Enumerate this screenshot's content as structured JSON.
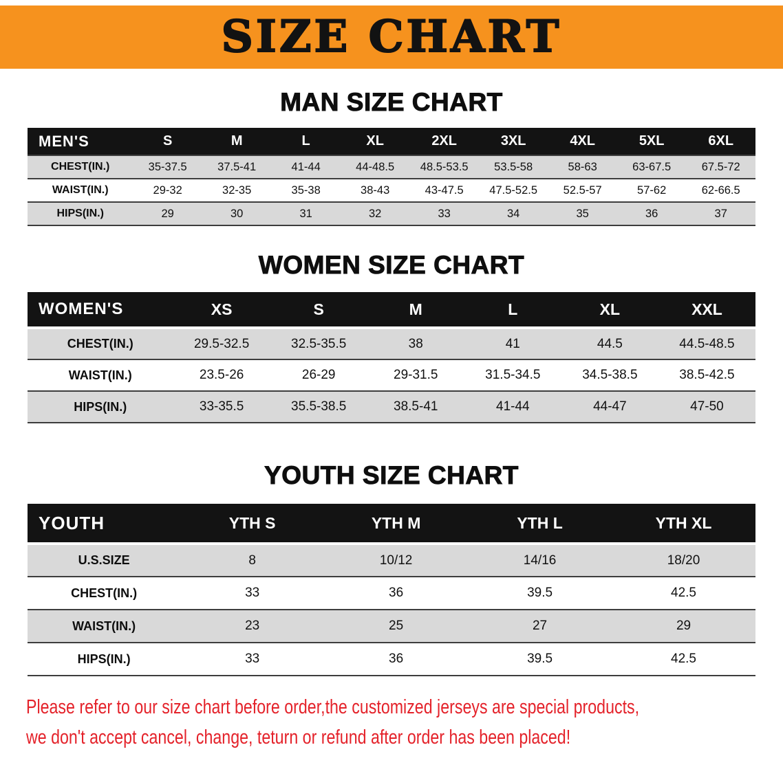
{
  "banner": {
    "title": "SIZE CHART",
    "background_color": "#F6921E",
    "text_color": "#121212"
  },
  "chart_data": [
    {
      "type": "table",
      "title": "MAN SIZE CHART",
      "corner_label": "MEN'S",
      "columns": [
        "S",
        "M",
        "L",
        "XL",
        "2XL",
        "3XL",
        "4XL",
        "5XL",
        "6XL"
      ],
      "rows": [
        {
          "label": "CHEST(IN.)",
          "values": [
            "35-37.5",
            "37.5-41",
            "41-44",
            "44-48.5",
            "48.5-53.5",
            "53.5-58",
            "58-63",
            "63-67.5",
            "67.5-72"
          ]
        },
        {
          "label": "WAIST(IN.)",
          "values": [
            "29-32",
            "32-35",
            "35-38",
            "38-43",
            "43-47.5",
            "47.5-52.5",
            "52.5-57",
            "57-62",
            "62-66.5"
          ]
        },
        {
          "label": "HIPS(IN.)",
          "values": [
            "29",
            "30",
            "31",
            "32",
            "33",
            "34",
            "35",
            "36",
            "37"
          ]
        }
      ]
    },
    {
      "type": "table",
      "title": "WOMEN SIZE CHART",
      "corner_label": "WOMEN'S",
      "columns": [
        "XS",
        "S",
        "M",
        "L",
        "XL",
        "XXL"
      ],
      "rows": [
        {
          "label": "CHEST(IN.)",
          "values": [
            "29.5-32.5",
            "32.5-35.5",
            "38",
            "41",
            "44.5",
            "44.5-48.5"
          ]
        },
        {
          "label": "WAIST(IN.)",
          "values": [
            "23.5-26",
            "26-29",
            "29-31.5",
            "31.5-34.5",
            "34.5-38.5",
            "38.5-42.5"
          ]
        },
        {
          "label": "HIPS(IN.)",
          "values": [
            "33-35.5",
            "35.5-38.5",
            "38.5-41",
            "41-44",
            "44-47",
            "47-50"
          ]
        }
      ]
    },
    {
      "type": "table",
      "title": "YOUTH SIZE CHART",
      "corner_label": "YOUTH",
      "columns": [
        "YTH S",
        "YTH M",
        "YTH L",
        "YTH XL"
      ],
      "rows": [
        {
          "label": "U.S.SIZE",
          "values": [
            "8",
            "10/12",
            "14/16",
            "18/20"
          ]
        },
        {
          "label": "CHEST(IN.)",
          "values": [
            "33",
            "36",
            "39.5",
            "42.5"
          ]
        },
        {
          "label": "WAIST(IN.)",
          "values": [
            "23",
            "25",
            "27",
            "29"
          ]
        },
        {
          "label": "HIPS(IN.)",
          "values": [
            "33",
            "36",
            "39.5",
            "42.5"
          ]
        }
      ]
    }
  ],
  "disclaimer": {
    "color": "#E4222A",
    "lines": [
      "Please refer to our size chart before order,the customized jerseys are special products,",
      "we don't accept cancel, change, teturn or refund after order has been placed!"
    ]
  }
}
